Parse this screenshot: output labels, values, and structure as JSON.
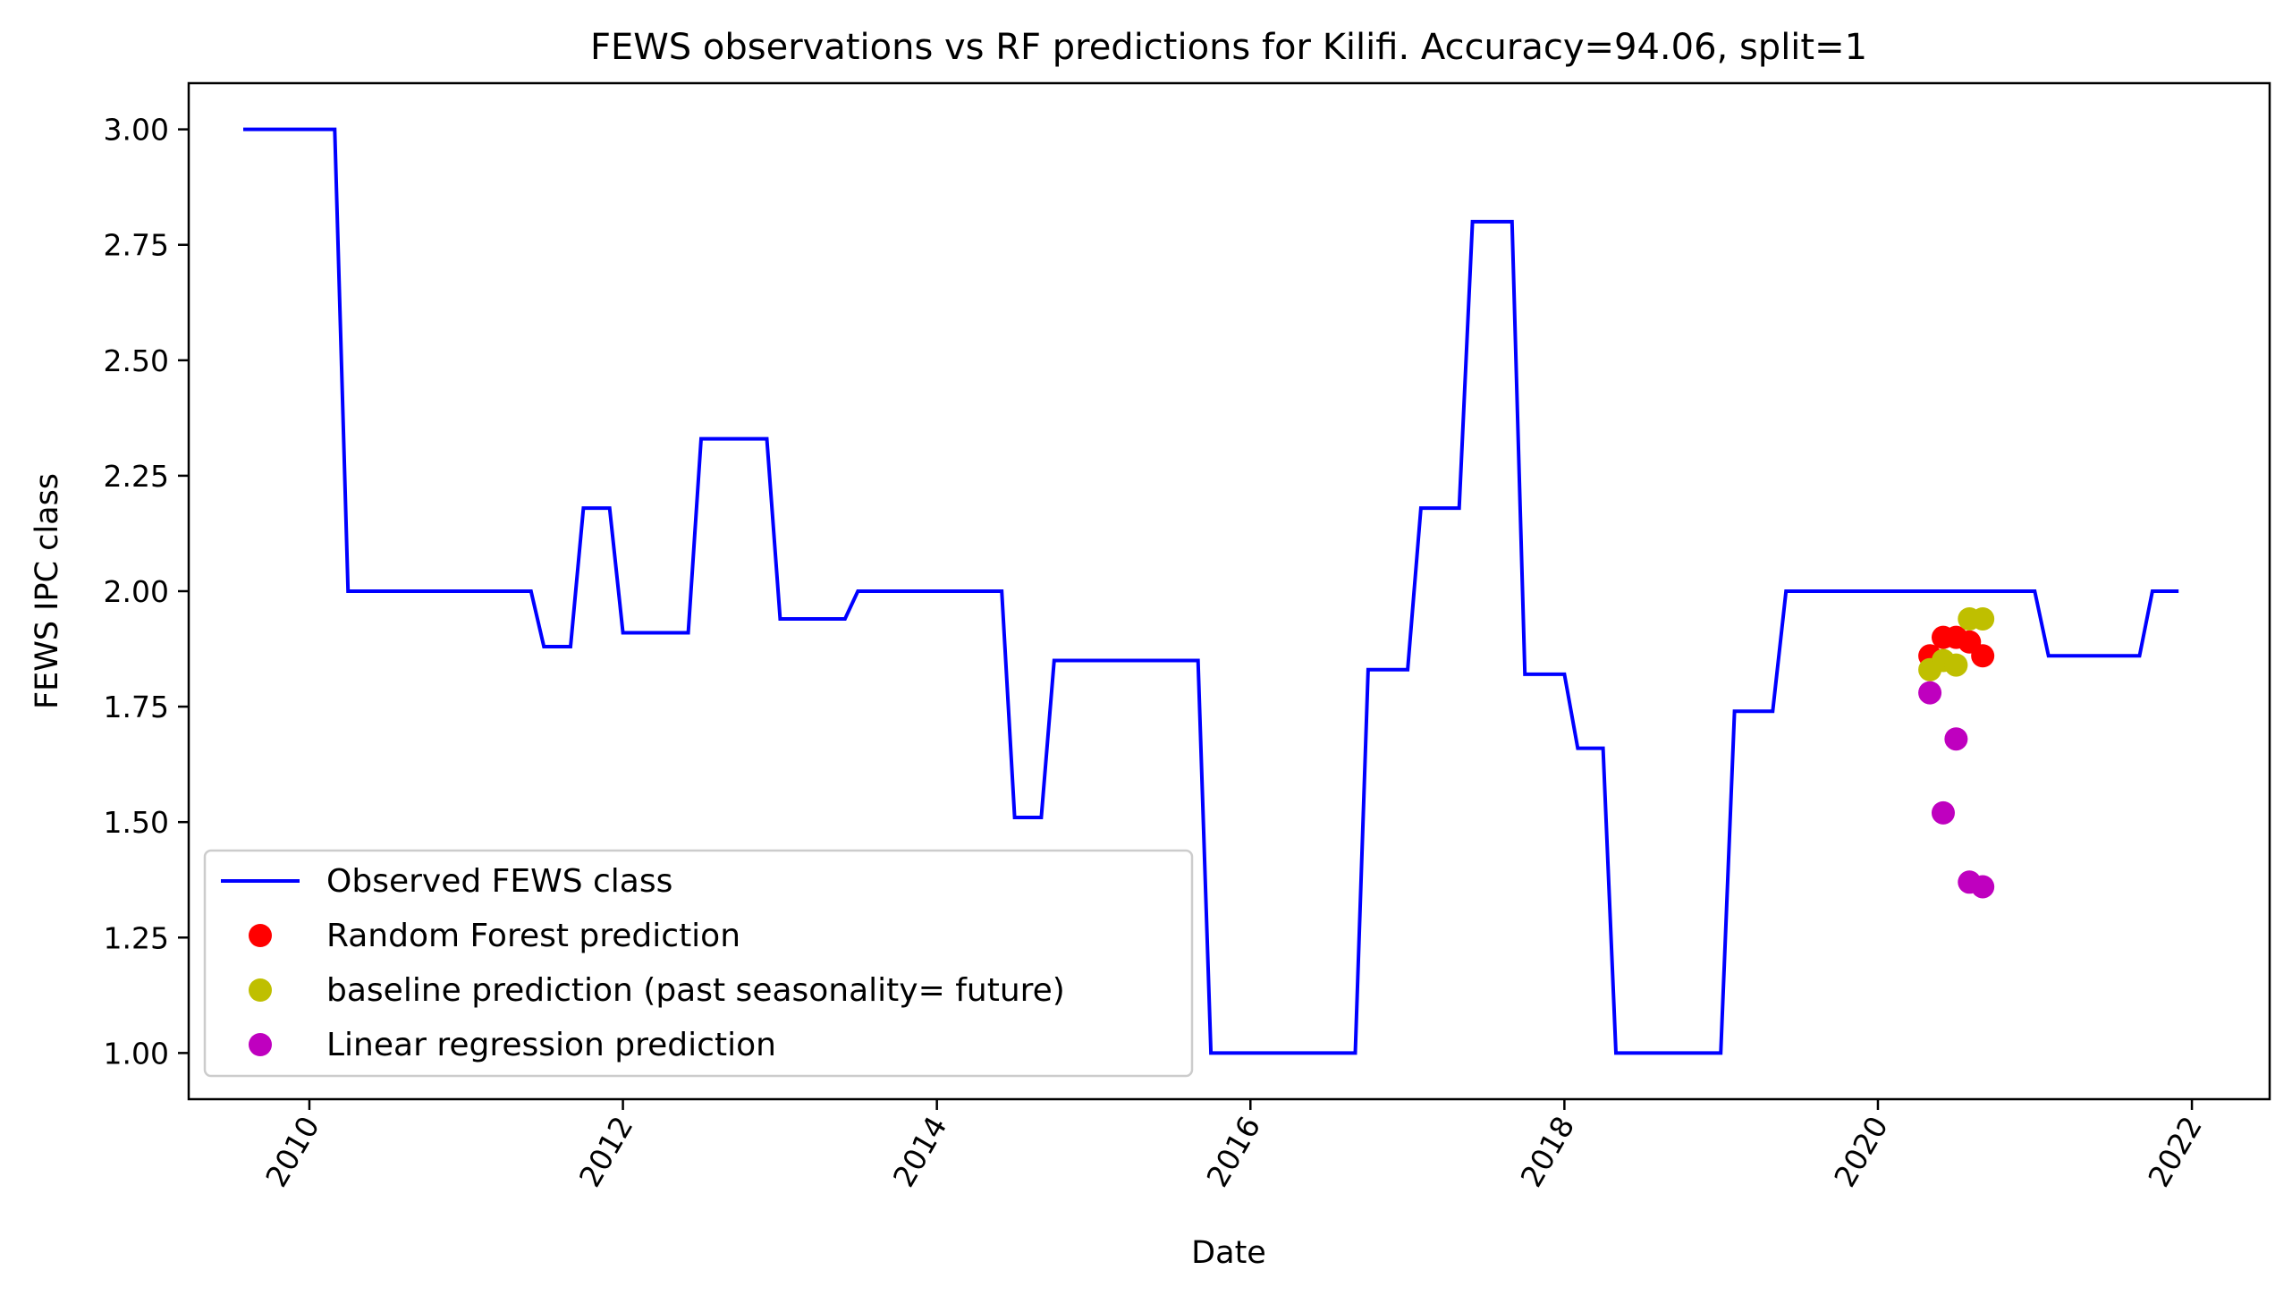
{
  "chart_data": {
    "type": "line",
    "title": "FEWS observations vs RF predictions for Kilifi. Accuracy=94.06, split=1",
    "xlabel": "Date",
    "ylabel": "FEWS IPC class",
    "xlim": [
      "2009-03-26",
      "2022-07-01"
    ],
    "ylim": [
      0.9,
      3.1
    ],
    "x_ticks": [
      "2010",
      "2012",
      "2014",
      "2016",
      "2018",
      "2020",
      "2022"
    ],
    "x_tick_dates": [
      "2010-01-01",
      "2012-01-01",
      "2014-01-01",
      "2016-01-01",
      "2018-01-01",
      "2020-01-01",
      "2022-01-01"
    ],
    "y_ticks": [
      "1.00",
      "1.25",
      "1.50",
      "1.75",
      "2.00",
      "2.25",
      "2.50",
      "2.75",
      "3.00"
    ],
    "y_tick_values": [
      1.0,
      1.25,
      1.5,
      1.75,
      2.0,
      2.25,
      2.5,
      2.75,
      3.0
    ],
    "legend_position": "lower-left",
    "series": [
      {
        "name": "Observed FEWS class",
        "kind": "line",
        "color": "#0000ff",
        "x": [
          "2009-07-31",
          "2010-03-01",
          "2010-04-01",
          "2011-06-01",
          "2011-07-01",
          "2011-09-01",
          "2011-10-01",
          "2011-12-01",
          "2012-01-01",
          "2012-06-01",
          "2012-07-01",
          "2012-12-01",
          "2013-01-01",
          "2013-06-01",
          "2013-07-01",
          "2014-06-01",
          "2014-07-01",
          "2014-09-01",
          "2014-10-01",
          "2015-09-01",
          "2015-10-01",
          "2016-09-01",
          "2016-10-01",
          "2017-01-01",
          "2017-02-01",
          "2017-05-01",
          "2017-06-01",
          "2017-09-01",
          "2017-10-01",
          "2018-01-01",
          "2018-02-01",
          "2018-04-01",
          "2018-05-01",
          "2018-12-31",
          "2019-02-01",
          "2019-05-01",
          "2019-06-01",
          "2020-12-31",
          "2021-02-01",
          "2021-09-01",
          "2021-10-01",
          "2021-12-01"
        ],
        "y": [
          3.0,
          3.0,
          2.0,
          2.0,
          1.88,
          1.88,
          2.18,
          2.18,
          1.91,
          1.91,
          2.33,
          2.33,
          1.94,
          1.94,
          2.0,
          2.0,
          1.51,
          1.51,
          1.85,
          1.85,
          1.0,
          1.0,
          1.83,
          1.83,
          2.18,
          2.18,
          2.8,
          2.8,
          1.82,
          1.82,
          1.66,
          1.66,
          1.0,
          1.0,
          1.74,
          1.74,
          2.0,
          2.0,
          1.86,
          1.86,
          2.0,
          2.0
        ]
      },
      {
        "name": "Random Forest prediction",
        "kind": "points",
        "color": "#ff0000",
        "x": [
          "2020-05-01",
          "2020-06-01",
          "2020-07-01",
          "2020-08-01",
          "2020-09-01"
        ],
        "y": [
          1.86,
          1.9,
          1.9,
          1.89,
          1.86
        ]
      },
      {
        "name": "baseline prediction (past seasonality= future)",
        "kind": "points",
        "color": "#bfbf00",
        "x": [
          "2020-05-01",
          "2020-06-01",
          "2020-07-01",
          "2020-08-01",
          "2020-09-01"
        ],
        "y": [
          1.83,
          1.85,
          1.84,
          1.94,
          1.94
        ]
      },
      {
        "name": "Linear regression prediction",
        "kind": "points",
        "color": "#bf00bf",
        "x": [
          "2020-05-01",
          "2020-06-01",
          "2020-07-01",
          "2020-08-01",
          "2020-09-01"
        ],
        "y": [
          1.78,
          1.52,
          1.68,
          1.37,
          1.36
        ]
      }
    ]
  }
}
